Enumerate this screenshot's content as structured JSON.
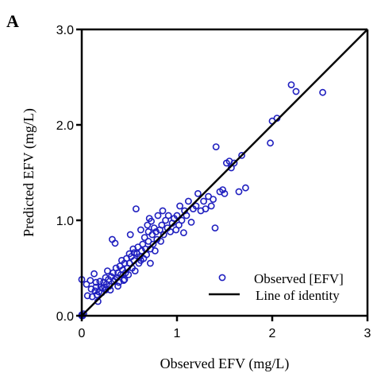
{
  "chart_data": {
    "type": "scatter",
    "panel_label": "A",
    "xlabel": "Observed EFV (mg/L)",
    "ylabel": "Predicted EFV (mg/L)",
    "xlim": [
      0,
      3
    ],
    "ylim": [
      0,
      3
    ],
    "x_ticks": [
      {
        "value": 0,
        "label": "0"
      },
      {
        "value": 1,
        "label": "1"
      },
      {
        "value": 2,
        "label": "2"
      },
      {
        "value": 3,
        "label": "3"
      }
    ],
    "y_ticks": [
      {
        "value": 0,
        "label": "0.0"
      },
      {
        "value": 1,
        "label": "1.0"
      },
      {
        "value": 2,
        "label": "2.0"
      },
      {
        "value": 3,
        "label": "3.0"
      }
    ],
    "grid": false,
    "legend_position": "bottom-right",
    "colors": {
      "points": "#1f1fbf",
      "identity_line": "#000000",
      "axes": "#000000"
    },
    "series": [
      {
        "name": "Observed [EFV]",
        "kind": "points",
        "points": [
          [
            0.0,
            0.0
          ],
          [
            0.0,
            0.01
          ],
          [
            0.01,
            0.0
          ],
          [
            0.02,
            0.02
          ],
          [
            0.0,
            0.38
          ],
          [
            0.05,
            0.33
          ],
          [
            0.06,
            0.21
          ],
          [
            0.09,
            0.37
          ],
          [
            0.1,
            0.28
          ],
          [
            0.11,
            0.2
          ],
          [
            0.13,
            0.44
          ],
          [
            0.14,
            0.26
          ],
          [
            0.15,
            0.3
          ],
          [
            0.16,
            0.22
          ],
          [
            0.17,
            0.15
          ],
          [
            0.19,
            0.36
          ],
          [
            0.2,
            0.3
          ],
          [
            0.21,
            0.24
          ],
          [
            0.22,
            0.29
          ],
          [
            0.23,
            0.35
          ],
          [
            0.24,
            0.3
          ],
          [
            0.25,
            0.27
          ],
          [
            0.26,
            0.33
          ],
          [
            0.27,
            0.47
          ],
          [
            0.28,
            0.38
          ],
          [
            0.29,
            0.31
          ],
          [
            0.3,
            0.27
          ],
          [
            0.31,
            0.41
          ],
          [
            0.32,
            0.8
          ],
          [
            0.33,
            0.45
          ],
          [
            0.34,
            0.36
          ],
          [
            0.35,
            0.76
          ],
          [
            0.35,
            0.38
          ],
          [
            0.36,
            0.5
          ],
          [
            0.37,
            0.4
          ],
          [
            0.38,
            0.45
          ],
          [
            0.39,
            0.35
          ],
          [
            0.4,
            0.52
          ],
          [
            0.41,
            0.43
          ],
          [
            0.42,
            0.58
          ],
          [
            0.43,
            0.48
          ],
          [
            0.44,
            0.37
          ],
          [
            0.45,
            0.55
          ],
          [
            0.46,
            0.45
          ],
          [
            0.47,
            0.6
          ],
          [
            0.48,
            0.5
          ],
          [
            0.49,
            0.43
          ],
          [
            0.5,
            0.65
          ],
          [
            0.5,
            0.55
          ],
          [
            0.51,
            0.85
          ],
          [
            0.52,
            0.62
          ],
          [
            0.53,
            0.5
          ],
          [
            0.54,
            0.7
          ],
          [
            0.55,
            0.58
          ],
          [
            0.56,
            0.47
          ],
          [
            0.57,
            1.12
          ],
          [
            0.58,
            0.65
          ],
          [
            0.59,
            0.72
          ],
          [
            0.6,
            0.55
          ],
          [
            0.61,
            0.62
          ],
          [
            0.62,
            0.9
          ],
          [
            0.63,
            0.68
          ],
          [
            0.64,
            0.75
          ],
          [
            0.65,
            0.6
          ],
          [
            0.66,
            0.82
          ],
          [
            0.67,
            0.7
          ],
          [
            0.68,
            0.64
          ],
          [
            0.69,
            0.95
          ],
          [
            0.7,
            0.78
          ],
          [
            0.71,
            1.02
          ],
          [
            0.72,
            0.7
          ],
          [
            0.73,
            0.99
          ],
          [
            0.74,
            0.85
          ],
          [
            0.75,
            0.75
          ],
          [
            0.76,
            0.92
          ],
          [
            0.77,
            0.68
          ],
          [
            0.78,
            0.88
          ],
          [
            0.79,
            0.8
          ],
          [
            0.8,
            1.05
          ],
          [
            0.82,
            0.9
          ],
          [
            0.83,
            0.78
          ],
          [
            0.84,
            0.95
          ],
          [
            0.85,
            1.1
          ],
          [
            0.86,
            0.85
          ],
          [
            0.88,
            1.0
          ],
          [
            0.9,
            0.92
          ],
          [
            0.91,
            1.05
          ],
          [
            0.93,
            0.88
          ],
          [
            0.95,
            0.97
          ],
          [
            0.97,
            1.02
          ],
          [
            0.99,
            0.9
          ],
          [
            1.0,
            1.05
          ],
          [
            1.02,
            0.95
          ],
          [
            1.03,
            1.15
          ],
          [
            1.05,
            1.0
          ],
          [
            1.07,
            0.87
          ],
          [
            1.08,
            1.1
          ],
          [
            1.1,
            1.05
          ],
          [
            1.12,
            1.2
          ],
          [
            1.15,
            0.98
          ],
          [
            1.17,
            1.12
          ],
          [
            1.2,
            1.15
          ],
          [
            1.22,
            1.28
          ],
          [
            1.25,
            1.1
          ],
          [
            1.28,
            1.2
          ],
          [
            1.3,
            1.12
          ],
          [
            1.33,
            1.25
          ],
          [
            1.36,
            1.15
          ],
          [
            1.38,
            1.22
          ],
          [
            1.4,
            0.92
          ],
          [
            1.41,
            1.77
          ],
          [
            1.45,
            1.3
          ],
          [
            1.48,
            1.32
          ],
          [
            1.5,
            1.28
          ],
          [
            1.52,
            1.6
          ],
          [
            1.55,
            1.62
          ],
          [
            1.57,
            1.55
          ],
          [
            1.6,
            1.6
          ],
          [
            1.65,
            1.3
          ],
          [
            1.68,
            1.68
          ],
          [
            1.72,
            1.34
          ],
          [
            1.98,
            1.81
          ],
          [
            2.0,
            2.04
          ],
          [
            2.05,
            2.07
          ],
          [
            2.2,
            2.42
          ],
          [
            2.25,
            2.35
          ],
          [
            2.53,
            2.34
          ],
          [
            0.72,
            0.55
          ],
          [
            0.15,
            0.35
          ],
          [
            0.18,
            0.25
          ],
          [
            0.25,
            0.4
          ],
          [
            0.38,
            0.31
          ],
          [
            0.45,
            0.38
          ],
          [
            0.55,
            0.66
          ],
          [
            0.62,
            0.58
          ],
          [
            0.7,
            0.88
          ]
        ]
      },
      {
        "name": "Line of identity",
        "kind": "line",
        "points": [
          [
            0,
            0
          ],
          [
            3,
            3
          ]
        ]
      }
    ]
  }
}
